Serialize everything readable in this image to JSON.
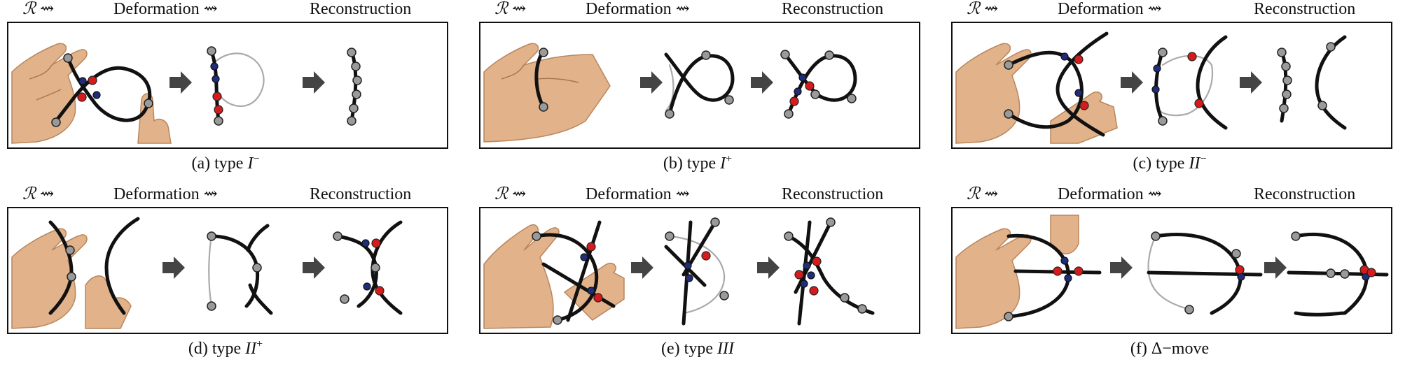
{
  "header": {
    "r_label": "ℛ ⇝",
    "deformation_label": "Deformation ⇝",
    "reconstruction_label": "Reconstruction"
  },
  "panels": [
    {
      "caption_prefix": "(a) type ",
      "caption_math": "I",
      "caption_sup": "−"
    },
    {
      "caption_prefix": "(b) type ",
      "caption_math": "I",
      "caption_sup": "+"
    },
    {
      "caption_prefix": "(c) type ",
      "caption_math": "II",
      "caption_sup": "−"
    },
    {
      "caption_prefix": "(d) type ",
      "caption_math": "II",
      "caption_sup": "+"
    },
    {
      "caption_prefix": "(e) type ",
      "caption_math": "III",
      "caption_sup": ""
    },
    {
      "caption_prefix": "(f) Δ−move",
      "caption_math": "",
      "caption_sup": ""
    }
  ],
  "colors": {
    "curve": "#111111",
    "ghost_curve": "#aaaaaa",
    "point_gray": "#9a9a9a",
    "point_blue": "#1f2d7a",
    "point_red": "#d51b1b",
    "hand": "#e2b38a",
    "arrow": "#444444"
  }
}
